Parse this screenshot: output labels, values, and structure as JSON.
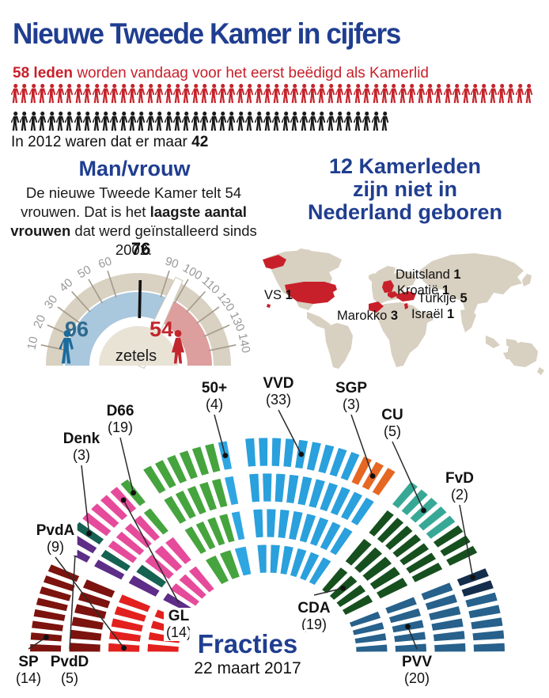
{
  "infographic": {
    "title": "Nieuwe Tweede Kamer in cijfers",
    "colors": {
      "heading_blue": "#203e90",
      "accent_red": "#c8202a",
      "icon_red": "#c5232b",
      "icon_black": "#1a1a1a",
      "map_land": "#d8d0c1",
      "map_red": "#c8202a",
      "gauge_band": "#d9d1c1",
      "gauge_inner_disc": "#e9e3d6",
      "gauge_blue_band": "#a9c7dd",
      "gauge_rose_band": "#dd9f9e",
      "men_blue": "#1c6b9c",
      "women_red": "#c1272d",
      "tick_gray": "#a39a8b",
      "tick_label_gray": "#999999"
    },
    "intro": {
      "bold": "58 leden",
      "text": " worden vandaag voor het eerst beëdigd als Kamerlid",
      "note_text": "In 2012 waren dat er maar ",
      "note_bold": "42"
    },
    "man_vrouw": {
      "heading": "Man/vrouw",
      "body": [
        {
          "text": "De nieuwe Tweede Kamer telt 54 vrouwen. Dat is het ",
          "bold": false
        },
        {
          "text": "laagste aantal vrouwen",
          "bold": true
        },
        {
          "text": " dat werd geïnstalleerd sinds 2002.",
          "bold": false
        }
      ]
    },
    "abroad": {
      "heading_lines": [
        "12 Kamerleden",
        "zijn niet in",
        "Nederland geboren"
      ]
    },
    "fracties": {
      "heading": "Fracties",
      "date": "22 maart 2017"
    }
  },
  "chart_data": [
    {
      "type": "parliament-arc",
      "title": "Fracties",
      "subtitle": "22 maart 2017",
      "total_seats": 150,
      "parties": [
        {
          "name": "SP",
          "seats": 14,
          "color": "#7c130e"
        },
        {
          "name": "PvdA",
          "seats": 9,
          "color": "#e2211f"
        },
        {
          "name": "PvdD",
          "seats": 5,
          "color": "#5e2d87"
        },
        {
          "name": "Denk",
          "seats": 3,
          "color": "#156152"
        },
        {
          "name": "GL",
          "seats": 14,
          "color": "#e64b9b"
        },
        {
          "name": "D66",
          "seats": 19,
          "color": "#46a43e"
        },
        {
          "name": "50+",
          "seats": 4,
          "color": "#2ea6e2"
        },
        {
          "name": "VVD",
          "seats": 33,
          "color": "#2aa0dc"
        },
        {
          "name": "SGP",
          "seats": 3,
          "color": "#e56722"
        },
        {
          "name": "CU",
          "seats": 5,
          "color": "#38a896"
        },
        {
          "name": "CDA",
          "seats": 19,
          "color": "#17501f"
        },
        {
          "name": "FvD",
          "seats": 2,
          "color": "#152e4d"
        },
        {
          "name": "PVV",
          "seats": 20,
          "color": "#27618c"
        }
      ]
    },
    {
      "type": "gauge",
      "title": "Man/vrouw",
      "unit": "zetels",
      "men": 96,
      "women": 54,
      "majority_marker": 76,
      "scale_max": 150,
      "ticks": [
        10,
        20,
        30,
        40,
        50,
        60,
        90,
        100,
        110,
        120,
        130,
        140
      ]
    },
    {
      "type": "pictogram",
      "new_members_2017": 58,
      "members_2012": 42
    },
    {
      "type": "map",
      "title": "12 Kamerleden zijn niet in Nederland geboren",
      "total": 12,
      "countries": [
        {
          "id": "vs",
          "name": "VS",
          "count": 1
        },
        {
          "id": "duitsland",
          "name": "Duitsland",
          "count": 1
        },
        {
          "id": "kroatie",
          "name": "Kroatië",
          "count": 1
        },
        {
          "id": "turkije",
          "name": "Turkije",
          "count": 5
        },
        {
          "id": "israel",
          "name": "Israël",
          "count": 1
        },
        {
          "id": "marokko",
          "name": "Marokko",
          "count": 3
        }
      ]
    }
  ]
}
